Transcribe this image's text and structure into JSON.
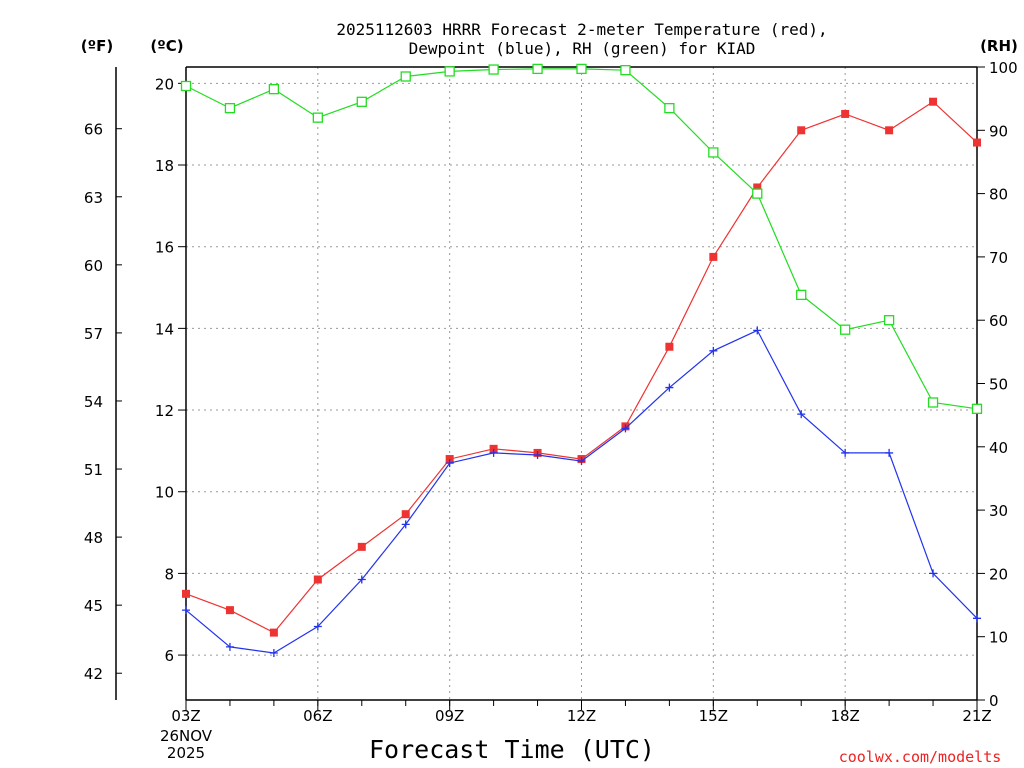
{
  "chart_data": {
    "type": "line",
    "title_line1": "2025112603 HRRR Forecast 2-meter Temperature (red),",
    "title_line2": "Dewpoint (blue), RH (green) for KIAD",
    "xlabel": "Forecast Time (UTC)",
    "date_label_1": "26NOV",
    "date_label_2": "2025",
    "credit": "coolwx.com/modelts",
    "unit_labels": {
      "fahrenheit": "(ºF)",
      "celsius": "(ºC)",
      "rh": "(RH)"
    },
    "x_hours": [
      3,
      4,
      5,
      6,
      7,
      8,
      9,
      10,
      11,
      12,
      13,
      14,
      15,
      16,
      17,
      18,
      19,
      20,
      21
    ],
    "x_ticks": [
      {
        "hour": 3,
        "label": "03Z"
      },
      {
        "hour": 6,
        "label": "06Z"
      },
      {
        "hour": 9,
        "label": "09Z"
      },
      {
        "hour": 12,
        "label": "12Z"
      },
      {
        "hour": 15,
        "label": "15Z"
      },
      {
        "hour": 18,
        "label": "18Z"
      },
      {
        "hour": 21,
        "label": "21Z"
      }
    ],
    "xlim": [
      3,
      21
    ],
    "celsius_axis": {
      "ylim": [
        4.9,
        20.4
      ],
      "ticks": [
        6,
        8,
        10,
        12,
        14,
        16,
        18,
        20
      ]
    },
    "fahrenheit_axis": {
      "ticks": [
        42,
        45,
        48,
        51,
        54,
        57,
        60,
        63,
        66
      ]
    },
    "rh_axis": {
      "ylim": [
        0,
        100
      ],
      "ticks": [
        0,
        10,
        20,
        30,
        40,
        50,
        60,
        70,
        80,
        90,
        100
      ]
    },
    "series": [
      {
        "name": "Temperature",
        "units": "C",
        "color": "#ee3333",
        "marker": "filled-square",
        "values": [
          7.5,
          7.1,
          6.55,
          7.85,
          8.65,
          9.45,
          10.8,
          11.05,
          10.95,
          10.8,
          11.6,
          13.55,
          15.75,
          17.45,
          18.85,
          19.25,
          18.85,
          19.55,
          18.55
        ]
      },
      {
        "name": "Dewpoint",
        "units": "C",
        "color": "#2233ee",
        "marker": "plus",
        "values": [
          7.1,
          6.2,
          6.05,
          6.7,
          7.85,
          9.2,
          10.7,
          10.95,
          10.9,
          10.75,
          11.55,
          12.55,
          13.45,
          13.95,
          11.9,
          10.95,
          10.95,
          8.0,
          6.9
        ]
      },
      {
        "name": "RH",
        "units": "%",
        "color": "#22dd22",
        "marker": "open-square",
        "values": [
          97,
          93.5,
          96.5,
          92,
          94.5,
          98.5,
          99.3,
          99.6,
          99.7,
          99.7,
          99.5,
          93.5,
          86.5,
          80,
          64,
          58.5,
          60,
          47,
          46
        ]
      }
    ]
  }
}
